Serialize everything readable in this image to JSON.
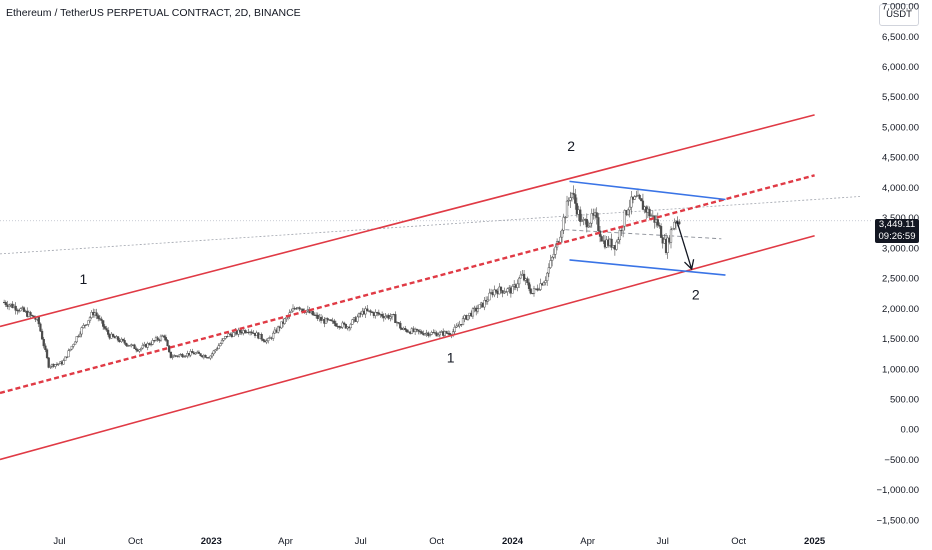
{
  "header": {
    "title": "Ethereum / TetherUS PERPETUAL CONTRACT, 2D, BINANCE",
    "currency": "USDT"
  },
  "last_price": {
    "value": "3,449.11",
    "countdown": "09:26:59",
    "price": 3449.11
  },
  "colors": {
    "channel": "#e03a45",
    "flag": "#3a74e6",
    "arrow": "#131722",
    "candle": "#4a4a4a",
    "axis_text": "#131722"
  },
  "wave_labels": [
    {
      "label": "1",
      "date": "2022-07-30",
      "price": 2400
    },
    {
      "label": "2",
      "date": "2024-03-12",
      "price": 4600
    },
    {
      "label": "1",
      "date": "2023-10-18",
      "price": 1100
    },
    {
      "label": "2",
      "date": "2024-08-10",
      "price": 2150
    }
  ],
  "chart_data": {
    "type": "candlestick",
    "title": "Ethereum / TetherUS PERPETUAL CONTRACT, 2D, BINANCE",
    "xlabel": "",
    "ylabel": "",
    "y_ticks": [
      "7,000.00",
      "6,500.00",
      "6,000.00",
      "5,500.00",
      "5,000.00",
      "4,500.00",
      "4,000.00",
      "3,500.00",
      "3,000.00",
      "2,500.00",
      "2,000.00",
      "1,500.00",
      "1,000.00",
      "500.00",
      "0.00",
      "−500.00",
      "−1,000.00",
      "−1,500.00"
    ],
    "y_tick_values": [
      7000,
      6500,
      6000,
      5500,
      5000,
      4500,
      4000,
      3500,
      3000,
      2500,
      2000,
      1500,
      1000,
      500,
      0,
      -500,
      -1000,
      -1500
    ],
    "ylim": [
      -1700,
      7100
    ],
    "x_ticks": [
      {
        "label": "Jul",
        "date": "2022-07-01"
      },
      {
        "label": "Oct",
        "date": "2022-10-01"
      },
      {
        "label": "2023",
        "date": "2023-01-01"
      },
      {
        "label": "Apr",
        "date": "2023-04-01"
      },
      {
        "label": "Jul",
        "date": "2023-07-01"
      },
      {
        "label": "Oct",
        "date": "2023-10-01"
      },
      {
        "label": "2024",
        "date": "2024-01-01"
      },
      {
        "label": "Apr",
        "date": "2024-04-01"
      },
      {
        "label": "Jul",
        "date": "2024-07-01"
      },
      {
        "label": "Oct",
        "date": "2024-10-01"
      },
      {
        "label": "2025",
        "date": "2025-01-01"
      }
    ],
    "price_path": [
      [
        "2022-04-25",
        2100
      ],
      [
        "2022-05-12",
        2000
      ],
      [
        "2022-06-05",
        1800
      ],
      [
        "2022-06-18",
        1050
      ],
      [
        "2022-07-05",
        1100
      ],
      [
        "2022-07-25",
        1600
      ],
      [
        "2022-08-12",
        1950
      ],
      [
        "2022-08-30",
        1550
      ],
      [
        "2022-09-15",
        1450
      ],
      [
        "2022-10-05",
        1320
      ],
      [
        "2022-11-05",
        1550
      ],
      [
        "2022-11-12",
        1200
      ],
      [
        "2022-12-10",
        1260
      ],
      [
        "2022-12-30",
        1200
      ],
      [
        "2023-01-20",
        1550
      ],
      [
        "2023-02-15",
        1650
      ],
      [
        "2023-03-10",
        1450
      ],
      [
        "2023-04-15",
        2050
      ],
      [
        "2023-05-15",
        1800
      ],
      [
        "2023-06-15",
        1700
      ],
      [
        "2023-07-05",
        1950
      ],
      [
        "2023-08-10",
        1850
      ],
      [
        "2023-08-20",
        1650
      ],
      [
        "2023-09-10",
        1600
      ],
      [
        "2023-10-05",
        1580
      ],
      [
        "2023-10-20",
        1600
      ],
      [
        "2023-11-05",
        1850
      ],
      [
        "2023-11-25",
        2050
      ],
      [
        "2023-12-10",
        2300
      ],
      [
        "2024-01-01",
        2300
      ],
      [
        "2024-01-12",
        2550
      ],
      [
        "2024-01-25",
        2250
      ],
      [
        "2024-02-10",
        2500
      ],
      [
        "2024-02-25",
        3100
      ],
      [
        "2024-03-12",
        3950
      ],
      [
        "2024-03-25",
        3400
      ],
      [
        "2024-04-10",
        3500
      ],
      [
        "2024-04-20",
        3100
      ],
      [
        "2024-05-05",
        3050
      ],
      [
        "2024-05-20",
        3700
      ],
      [
        "2024-05-30",
        3800
      ],
      [
        "2024-06-10",
        3650
      ],
      [
        "2024-06-25",
        3400
      ],
      [
        "2024-07-05",
        3000
      ],
      [
        "2024-07-15",
        3450
      ],
      [
        "2024-07-22",
        3449.11
      ]
    ],
    "annotations": {
      "channel_upper": [
        [
          "2022-04-20",
          1700
        ],
        [
          "2025-01-01",
          5200
        ]
      ],
      "channel_middle": [
        [
          "2022-04-20",
          600
        ],
        [
          "2025-01-01",
          4200
        ]
      ],
      "channel_lower": [
        [
          "2022-04-20",
          -500
        ],
        [
          "2025-01-01",
          3200
        ]
      ],
      "flag_upper": [
        [
          "2024-03-10",
          4100
        ],
        [
          "2024-09-15",
          3800
        ]
      ],
      "flag_lower": [
        [
          "2024-03-10",
          2800
        ],
        [
          "2024-09-15",
          2550
        ]
      ],
      "arrow": [
        [
          "2024-07-18",
          3450
        ],
        [
          "2024-08-05",
          2650
        ]
      ],
      "dotted_trend": [
        [
          "2022-04-20",
          2900
        ],
        [
          "2025-02-25",
          3850
        ]
      ],
      "dashed_segment": [
        [
          "2024-03-05",
          3300
        ],
        [
          "2024-09-10",
          3150
        ]
      ],
      "last_price_line": 3449.11
    }
  }
}
